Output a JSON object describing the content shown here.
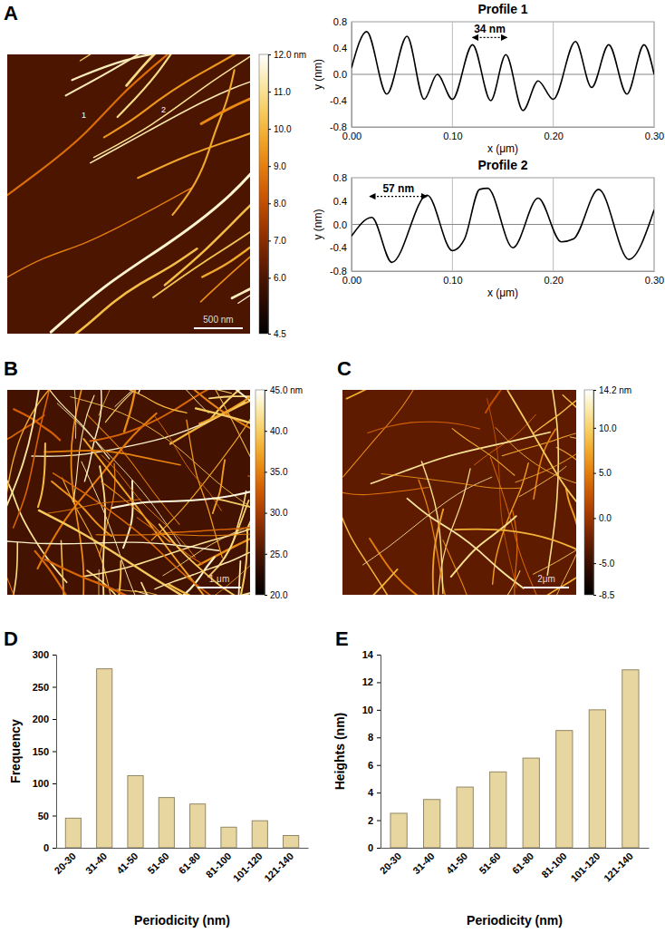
{
  "chart_data": [
    {
      "type": "image",
      "label": "A",
      "colorbar": {
        "range": [
          4.5,
          12.0
        ],
        "ticks": [
          {
            "value": 12,
            "label": "12.0 nm"
          },
          {
            "value": 11,
            "label": "11.0"
          },
          {
            "value": 10,
            "label": "10.0"
          },
          {
            "value": 9,
            "label": "9.0"
          },
          {
            "value": 8,
            "label": "8.0"
          },
          {
            "value": 7,
            "label": "7.0"
          },
          {
            "value": 6,
            "label": "6.0"
          },
          4.5
        ]
      },
      "scale_bar": "500 nm",
      "markers": [
        "1",
        "2"
      ]
    },
    {
      "type": "line",
      "title": "Profile 1",
      "x_label": "x (μm)",
      "y_label": "y (nm)",
      "x": [
        0,
        0.015,
        0.035,
        0.055,
        0.072,
        0.085,
        0.1,
        0.12,
        0.138,
        0.153,
        0.17,
        0.185,
        0.2,
        0.222,
        0.238,
        0.255,
        0.273,
        0.29,
        0.3
      ],
      "values": [
        0.1,
        0.65,
        -0.3,
        0.58,
        -0.38,
        0.0,
        -0.38,
        0.45,
        -0.4,
        0.3,
        -0.55,
        -0.1,
        -0.38,
        0.5,
        -0.2,
        0.45,
        -0.3,
        0.45,
        0.0
      ],
      "color": "#000000",
      "xlim": [
        0,
        0.3
      ],
      "ylim": [
        -0.8,
        0.8
      ],
      "xticks": [
        {
          "value": 0,
          "label": "0.00"
        },
        {
          "value": 0.1,
          "label": "0.10"
        },
        {
          "value": 0.2,
          "label": "0.20"
        },
        {
          "value": 0.3,
          "label": "0.30"
        }
      ],
      "yticks": [
        -0.8,
        -0.4,
        {
          "value": 0,
          "label": "0.0"
        },
        0.4,
        0.8
      ],
      "grid": "x",
      "annotations": [
        {
          "text": "34 nm",
          "x_start": 0.12,
          "x_end": 0.154,
          "y": 0.56
        }
      ]
    },
    {
      "type": "line",
      "title": "Profile 2",
      "x_label": "x (μm)",
      "y_label": "y (nm)",
      "x": [
        0,
        0.02,
        0.04,
        0.075,
        0.1,
        0.112,
        0.127,
        0.135,
        0.16,
        0.185,
        0.208,
        0.22,
        0.245,
        0.275,
        0.3
      ],
      "values": [
        -0.2,
        0.12,
        -0.65,
        0.5,
        -0.45,
        -0.25,
        0.6,
        0.62,
        -0.4,
        0.45,
        -0.3,
        -0.25,
        0.6,
        -0.6,
        0.25
      ],
      "color": "#000000",
      "xlim": [
        0,
        0.3
      ],
      "ylim": [
        -0.8,
        0.8
      ],
      "xticks": [
        {
          "value": 0,
          "label": "0.00"
        },
        {
          "value": 0.1,
          "label": "0.10"
        },
        {
          "value": 0.2,
          "label": "0.20"
        },
        {
          "value": 0.3,
          "label": "0.30"
        }
      ],
      "yticks": [
        -0.8,
        -0.4,
        {
          "value": 0,
          "label": "0.0"
        },
        0.4,
        0.8
      ],
      "grid": "x",
      "annotations": [
        {
          "text": "57 nm",
          "x_start": 0.018,
          "x_end": 0.075,
          "y": 0.48
        }
      ]
    },
    {
      "type": "image",
      "label": "B",
      "colorbar": {
        "range": [
          20.0,
          45.0
        ],
        "ticks": [
          {
            "value": 45,
            "label": "45.0 nm"
          },
          {
            "value": 40,
            "label": "40.0"
          },
          {
            "value": 35,
            "label": "35.0"
          },
          {
            "value": 30,
            "label": "30.0"
          },
          {
            "value": 25,
            "label": "25.0"
          },
          {
            "value": 20,
            "label": "20.0"
          }
        ]
      },
      "scale_bar": "1 μm"
    },
    {
      "type": "image",
      "label": "C",
      "colorbar": {
        "range": [
          -8.5,
          14.2
        ],
        "ticks": [
          {
            "value": 14.2,
            "label": "14.2 nm"
          },
          {
            "value": 10,
            "label": "10.0"
          },
          {
            "value": 5,
            "label": "5.0"
          },
          {
            "value": 0,
            "label": "0.0"
          },
          {
            "value": -5,
            "label": "-5.0"
          },
          -8.5
        ]
      },
      "scale_bar": "2μm"
    },
    {
      "type": "bar",
      "label": "D",
      "x_label": "Periodicity (nm)",
      "y_label": "Frequency",
      "categories": [
        "20-30",
        "31-40",
        "41-50",
        "51-60",
        "61-80",
        "81-100",
        "101-120",
        "121-140"
      ],
      "values": [
        46,
        278,
        112,
        78,
        68,
        32,
        42,
        19
      ],
      "color": "#e8d6a0",
      "ylim": [
        0,
        300
      ],
      "yticks": [
        0,
        50,
        100,
        150,
        200,
        250,
        300
      ]
    },
    {
      "type": "bar",
      "label": "E",
      "x_label": "Periodicity (nm)",
      "y_label": "Heights (nm)",
      "categories": [
        "20-30",
        "31-40",
        "41-50",
        "51-60",
        "61-80",
        "81-100",
        "101-120",
        "121-140"
      ],
      "values": [
        2.5,
        3.5,
        4.4,
        5.5,
        6.5,
        8.5,
        10.0,
        12.9
      ],
      "color": "#e8d6a0",
      "ylim": [
        0,
        14
      ],
      "yticks": [
        0,
        2,
        4,
        6,
        8,
        10,
        12,
        14
      ]
    }
  ]
}
